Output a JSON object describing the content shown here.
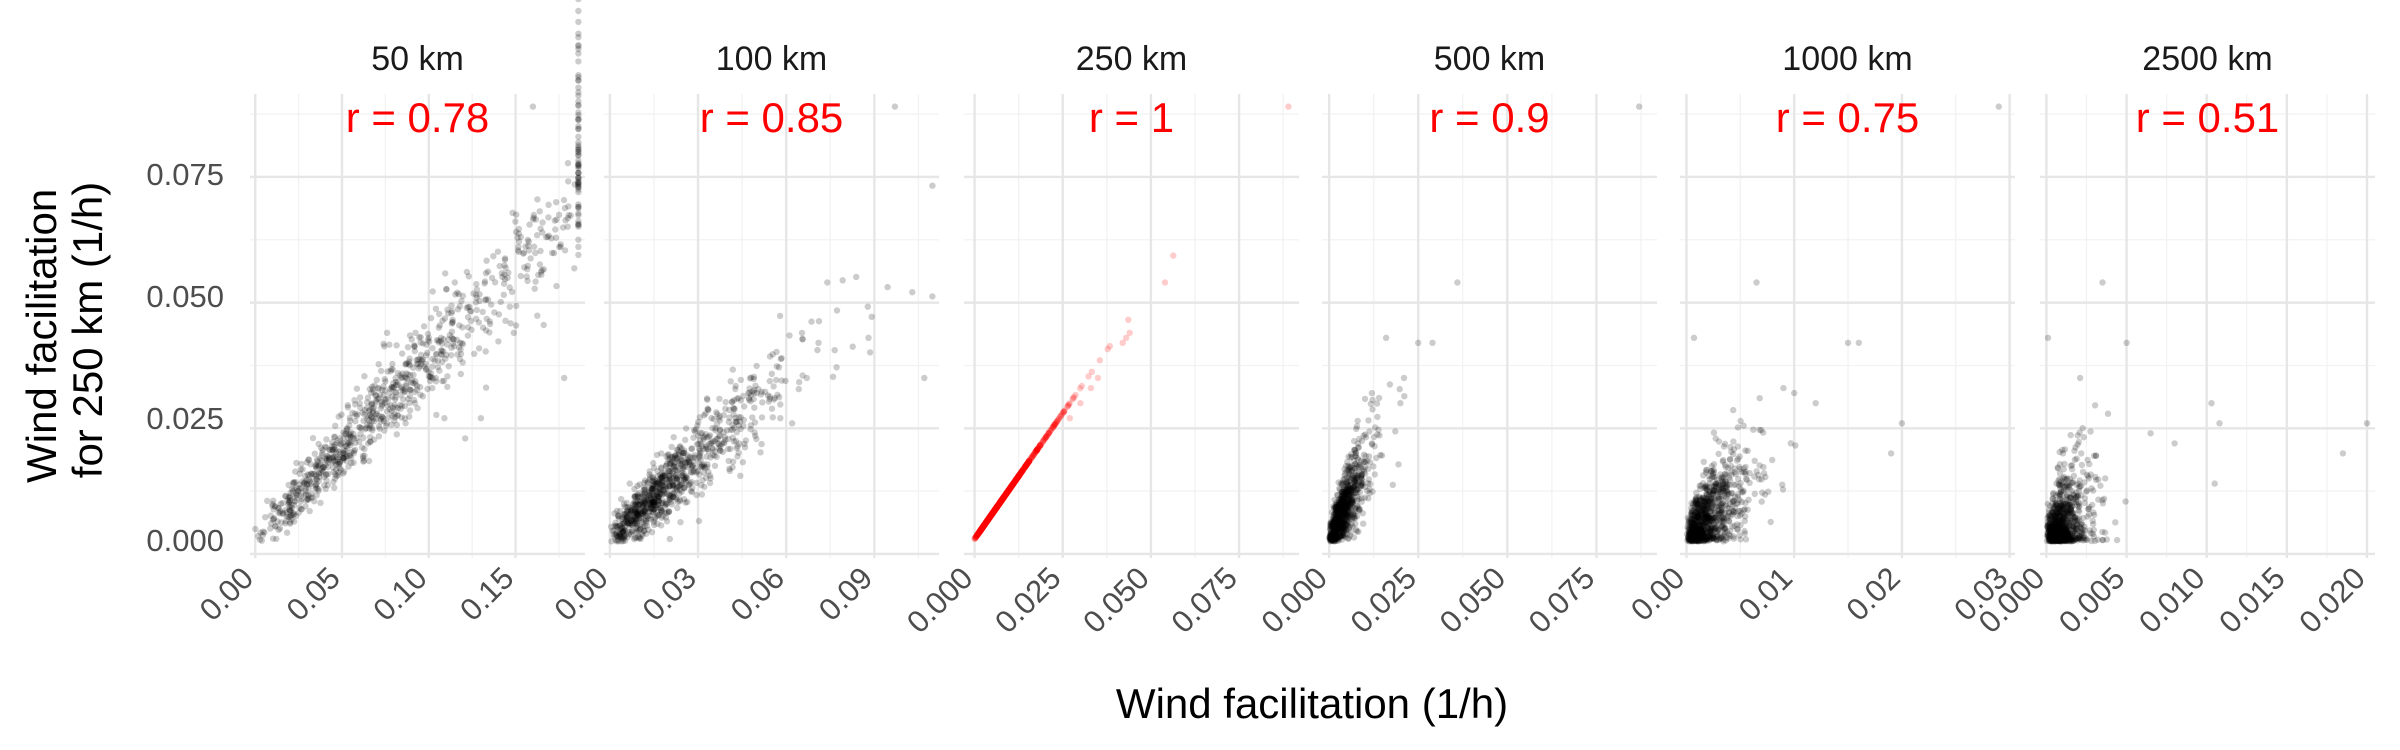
{
  "chart_data": {
    "type": "scatter",
    "xlabel": "Wind facilitation (1/h)",
    "ylabel": "Wind facilitation\nfor 250 km (1/h)",
    "ylim": [
      -0.0008,
      0.0915
    ],
    "y_ticks": [
      "0.000",
      "0.025",
      "0.050",
      "0.075"
    ],
    "grid": true,
    "panels": [
      {
        "title": "50 km",
        "r_label": "r = 0.78",
        "r_color": "#ff0000",
        "point_color": "#000000",
        "xlim": [
          -0.003,
          0.19
        ],
        "x_ticks": [
          0,
          0.05,
          0.1,
          0.15
        ],
        "x_tick_labels": [
          "0.00",
          "0.05",
          "0.10",
          "0.15"
        ],
        "x_minor": [
          0.025,
          0.075,
          0.125,
          0.175
        ],
        "n_points": 900,
        "slope": 0.36,
        "x_shape": 2.2,
        "x_scale": 0.045,
        "noise": 0.0038,
        "points": [
          [
            0.16,
            0.089
          ],
          [
            0.115,
            0.054
          ],
          [
            0.076,
            0.044
          ],
          [
            0.1,
            0.043
          ],
          [
            0.118,
            0.042
          ],
          [
            0.149,
            0.044
          ],
          [
            0.178,
            0.035
          ],
          [
            0.102,
            0.033
          ],
          [
            0.104,
            0.035
          ],
          [
            0.109,
            0.027
          ],
          [
            0.121,
            0.023
          ],
          [
            0.13,
            0.027
          ],
          [
            0.092,
            0.03
          ]
        ]
      },
      {
        "title": "100 km",
        "r_label": "r = 0.85",
        "r_color": "#ff0000",
        "point_color": "#000000",
        "xlim": [
          -0.002,
          0.112
        ],
        "x_ticks": [
          0,
          0.03,
          0.06,
          0.09
        ],
        "x_tick_labels": [
          "0.00",
          "0.03",
          "0.06",
          "0.09"
        ],
        "x_minor": [
          0.015,
          0.045,
          0.075,
          0.105
        ],
        "n_points": 900,
        "slope": 0.55,
        "x_shape": 2.2,
        "x_scale": 0.0115,
        "noise": 0.0032,
        "points": [
          [
            0.097,
            0.089
          ],
          [
            0.074,
            0.054
          ],
          [
            0.088,
            0.043
          ],
          [
            0.071,
            0.042
          ],
          [
            0.107,
            0.035
          ],
          [
            0.067,
            0.035
          ],
          [
            0.062,
            0.026
          ],
          [
            0.058,
            0.027
          ],
          [
            0.05,
            0.032
          ]
        ]
      },
      {
        "title": "250 km",
        "r_label": "r = 1",
        "r_color": "#ff0000",
        "point_color": "#ff0000",
        "xlim": [
          -0.003,
          0.092
        ],
        "x_ticks": [
          0,
          0.025,
          0.05,
          0.075
        ],
        "x_tick_labels": [
          "0.000",
          "0.025",
          "0.050",
          "0.075"
        ],
        "x_minor": [
          0.0125,
          0.0375,
          0.0625,
          0.0875
        ],
        "n_points": 900,
        "slope": 1.0,
        "x_shape": 2.2,
        "x_scale": 0.0045,
        "noise": 0.0,
        "points": [
          [
            0.089,
            0.089
          ],
          [
            0.054,
            0.054
          ],
          [
            0.044,
            0.044
          ],
          [
            0.043,
            0.043
          ],
          [
            0.042,
            0.042
          ],
          [
            0.035,
            0.035
          ],
          [
            0.033,
            0.033
          ],
          [
            0.03,
            0.03
          ],
          [
            0.027,
            0.027
          ]
        ]
      },
      {
        "title": "500 km",
        "r_label": "r = 0.9",
        "r_color": "#ff0000",
        "point_color": "#000000",
        "xlim": [
          -0.002,
          0.092
        ],
        "x_ticks": [
          0,
          0.025,
          0.05,
          0.075
        ],
        "x_tick_labels": [
          "0.000",
          "0.025",
          "0.050",
          "0.075"
        ],
        "x_minor": [
          0.0125,
          0.0375,
          0.0625,
          0.0875
        ],
        "n_points": 900,
        "slope": 1.45,
        "x_shape": 2.2,
        "x_scale": 0.0022,
        "noise": 0.0028,
        "points": [
          [
            0.087,
            0.089
          ],
          [
            0.036,
            0.054
          ],
          [
            0.016,
            0.043
          ],
          [
            0.025,
            0.042
          ],
          [
            0.029,
            0.042
          ],
          [
            0.021,
            0.035
          ],
          [
            0.02,
            0.03
          ],
          [
            0.012,
            0.032
          ]
        ]
      },
      {
        "title": "1000 km",
        "r_label": "r = 0.75",
        "r_color": "#ff0000",
        "point_color": "#000000",
        "xlim": [
          -0.0006,
          0.0305
        ],
        "x_ticks": [
          0,
          0.01,
          0.02,
          0.03
        ],
        "x_tick_labels": [
          "0.00",
          "0.01",
          "0.02",
          "0.03"
        ],
        "x_minor": [
          0.005,
          0.015,
          0.025
        ],
        "n_points": 900,
        "slope": 2.1,
        "x_shape": 2.2,
        "x_scale": 0.0011,
        "noise": 0.004,
        "points": [
          [
            0.029,
            0.089
          ],
          [
            0.0065,
            0.054
          ],
          [
            0.0007,
            0.043
          ],
          [
            0.015,
            0.042
          ],
          [
            0.016,
            0.042
          ],
          [
            0.01,
            0.032
          ],
          [
            0.009,
            0.033
          ],
          [
            0.02,
            0.026
          ],
          [
            0.019,
            0.02
          ],
          [
            0.012,
            0.03
          ]
        ]
      },
      {
        "title": "2500 km",
        "r_label": "r = 0.51",
        "r_color": "#ff0000",
        "point_color": "#000000",
        "xlim": [
          -0.0004,
          0.0205
        ],
        "x_ticks": [
          0,
          0.005,
          0.01,
          0.015,
          0.02
        ],
        "x_tick_labels": [
          "0.000",
          "0.005",
          "0.010",
          "0.015",
          "0.020"
        ],
        "x_minor": [
          0.0025,
          0.0075,
          0.0125,
          0.0175
        ],
        "n_points": 900,
        "slope": 2.3,
        "x_shape": 2.2,
        "x_scale": 0.00055,
        "noise": 0.0048,
        "points": [
          [
            0.0035,
            0.054
          ],
          [
            0.0001,
            0.043
          ],
          [
            0.005,
            0.042
          ],
          [
            0.0021,
            0.035
          ],
          [
            0.0103,
            0.03
          ],
          [
            0.0108,
            0.026
          ],
          [
            0.0105,
            0.014
          ],
          [
            0.008,
            0.022
          ],
          [
            0.0185,
            0.02
          ],
          [
            0.02,
            0.026
          ],
          [
            0.0065,
            0.024
          ]
        ]
      }
    ]
  }
}
